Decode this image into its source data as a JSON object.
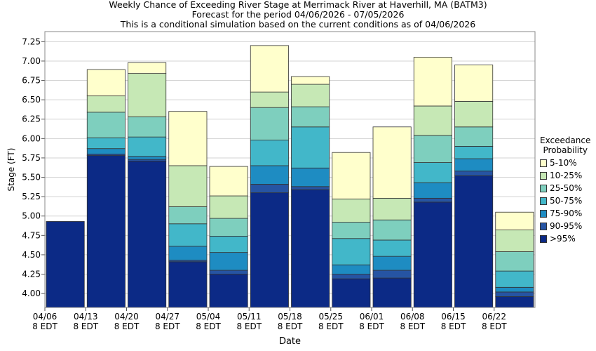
{
  "chart_data": {
    "type": "bar",
    "stacked": true,
    "title": [
      "Weekly Chance of Exceeding River Stage at Merrimack River at Haverhill, MA (BATM3)",
      "Forecast for the period 04/06/2026 - 07/05/2026",
      "This is a conditional simulation based on the current conditions as of 04/06/2026"
    ],
    "xlabel": "Date",
    "ylabel": "Stage (FT)",
    "ylim": [
      3.82,
      7.38
    ],
    "yticks": [
      "4.00",
      "4.25",
      "4.50",
      "4.75",
      "5.00",
      "5.25",
      "5.50",
      "5.75",
      "6.00",
      "6.25",
      "6.50",
      "6.75",
      "7.00",
      "7.25"
    ],
    "xticks": [
      {
        "date": "04/06",
        "tz": "8 EDT"
      },
      {
        "date": "04/13",
        "tz": "8 EDT"
      },
      {
        "date": "04/20",
        "tz": "8 EDT"
      },
      {
        "date": "04/27",
        "tz": "8 EDT"
      },
      {
        "date": "05/04",
        "tz": "8 EDT"
      },
      {
        "date": "05/11",
        "tz": "8 EDT"
      },
      {
        "date": "05/18",
        "tz": "8 EDT"
      },
      {
        "date": "05/25",
        "tz": "8 EDT"
      },
      {
        "date": "06/01",
        "tz": "8 EDT"
      },
      {
        "date": "06/08",
        "tz": "8 EDT"
      },
      {
        "date": "06/15",
        "tz": "8 EDT"
      },
      {
        "date": "06/22",
        "tz": "8 EDT"
      }
    ],
    "legend_title": [
      "Exceedance",
      "Probability"
    ],
    "legend_position": "right",
    "series": [
      {
        "name": ">95%",
        "color": "#0c2a86"
      },
      {
        "name": "90-95%",
        "color": "#2654a3"
      },
      {
        "name": "75-90%",
        "color": "#1e8cc2"
      },
      {
        "name": "50-75%",
        "color": "#42b7c9"
      },
      {
        "name": "25-50%",
        "color": "#7ecfbe"
      },
      {
        "name": "10-25%",
        "color": "#c6e8b5"
      },
      {
        "name": "5-10%",
        "color": "#ffffcc"
      }
    ],
    "weeks": [
      {
        "week": "04/06",
        "levels": [
          4.93,
          4.93,
          4.93,
          4.93,
          4.93,
          4.93,
          4.93
        ]
      },
      {
        "week": "04/13",
        "levels": [
          5.78,
          5.8,
          5.87,
          6.01,
          6.34,
          6.55,
          6.89
        ]
      },
      {
        "week": "04/20",
        "levels": [
          5.71,
          5.73,
          5.77,
          6.02,
          6.28,
          6.84,
          6.98
        ]
      },
      {
        "week": "04/27",
        "levels": [
          4.41,
          4.43,
          4.61,
          4.9,
          5.12,
          5.65,
          6.35
        ]
      },
      {
        "week": "05/04",
        "levels": [
          4.25,
          4.3,
          4.53,
          4.74,
          4.97,
          5.26,
          5.64
        ]
      },
      {
        "week": "05/11",
        "levels": [
          5.3,
          5.41,
          5.65,
          5.98,
          6.4,
          6.6,
          7.2
        ]
      },
      {
        "week": "05/18",
        "levels": [
          5.34,
          5.38,
          5.62,
          6.15,
          6.41,
          6.7,
          6.8
        ]
      },
      {
        "week": "05/25",
        "levels": [
          4.19,
          4.25,
          4.37,
          4.71,
          4.92,
          5.22,
          5.82
        ]
      },
      {
        "week": "06/01",
        "levels": [
          4.2,
          4.3,
          4.48,
          4.69,
          4.95,
          5.23,
          6.15
        ]
      },
      {
        "week": "06/08",
        "levels": [
          5.18,
          5.23,
          5.43,
          5.69,
          6.04,
          6.42,
          7.05
        ]
      },
      {
        "week": "06/15",
        "levels": [
          5.52,
          5.58,
          5.74,
          5.9,
          6.15,
          6.48,
          6.95
        ]
      },
      {
        "week": "06/22",
        "levels": [
          3.96,
          4.02,
          4.08,
          4.29,
          4.54,
          4.82,
          5.05
        ]
      }
    ]
  }
}
